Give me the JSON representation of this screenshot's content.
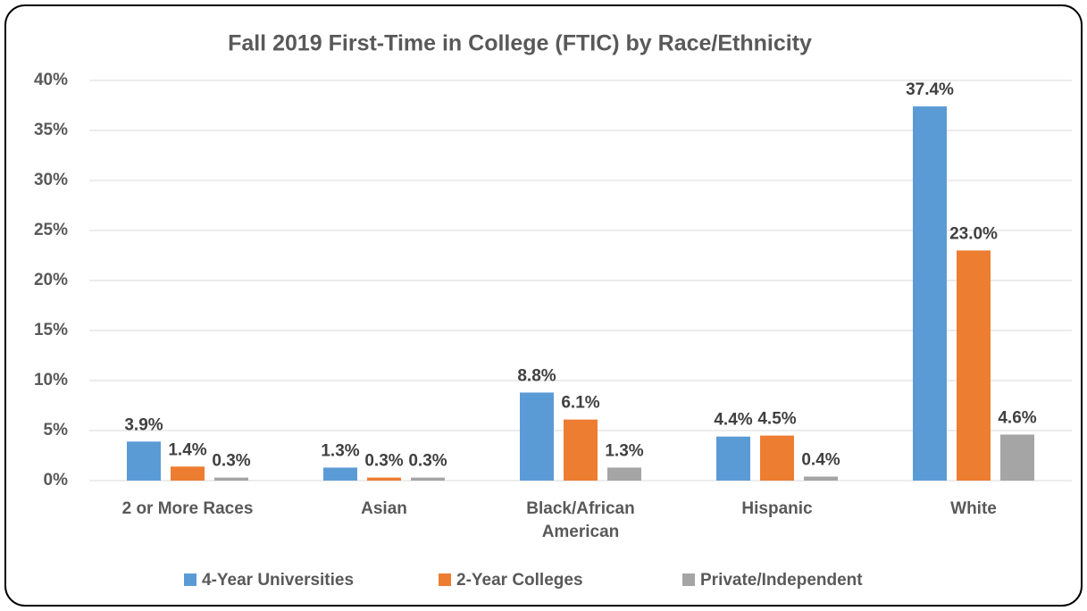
{
  "chart_data": {
    "type": "bar",
    "title": "Fall 2019 First-Time in College (FTIC) by Race/Ethnicity",
    "categories": [
      "2 or More Races",
      "Asian",
      "Black/African American",
      "Hispanic",
      "White"
    ],
    "series": [
      {
        "name": "4-Year Universities",
        "color": "#5b9bd5",
        "values": [
          3.9,
          1.3,
          8.8,
          4.4,
          37.4
        ],
        "value_labels": [
          "3.9%",
          "1.3%",
          "8.8%",
          "4.4%",
          "37.4%"
        ]
      },
      {
        "name": "2-Year Colleges",
        "color": "#ed7d31",
        "values": [
          1.4,
          0.3,
          6.1,
          4.5,
          23.0
        ],
        "value_labels": [
          "1.4%",
          "0.3%",
          "6.1%",
          "4.5%",
          "23.0%"
        ]
      },
      {
        "name": "Private/Independent",
        "color": "#a5a5a5",
        "values": [
          0.3,
          0.3,
          1.3,
          0.4,
          4.6
        ],
        "value_labels": [
          "0.3%",
          "0.3%",
          "1.3%",
          "0.4%",
          "4.6%"
        ]
      }
    ],
    "ylim": [
      0,
      40
    ],
    "yticks": [
      {
        "value": 0,
        "label": "0%"
      },
      {
        "value": 5,
        "label": "5%"
      },
      {
        "value": 10,
        "label": "10%"
      },
      {
        "value": 15,
        "label": "15%"
      },
      {
        "value": 20,
        "label": "20%"
      },
      {
        "value": 25,
        "label": "25%"
      },
      {
        "value": 30,
        "label": "30%"
      },
      {
        "value": 35,
        "label": "35%"
      },
      {
        "value": 40,
        "label": "40%"
      }
    ],
    "grid": true,
    "legend": "bottom"
  }
}
